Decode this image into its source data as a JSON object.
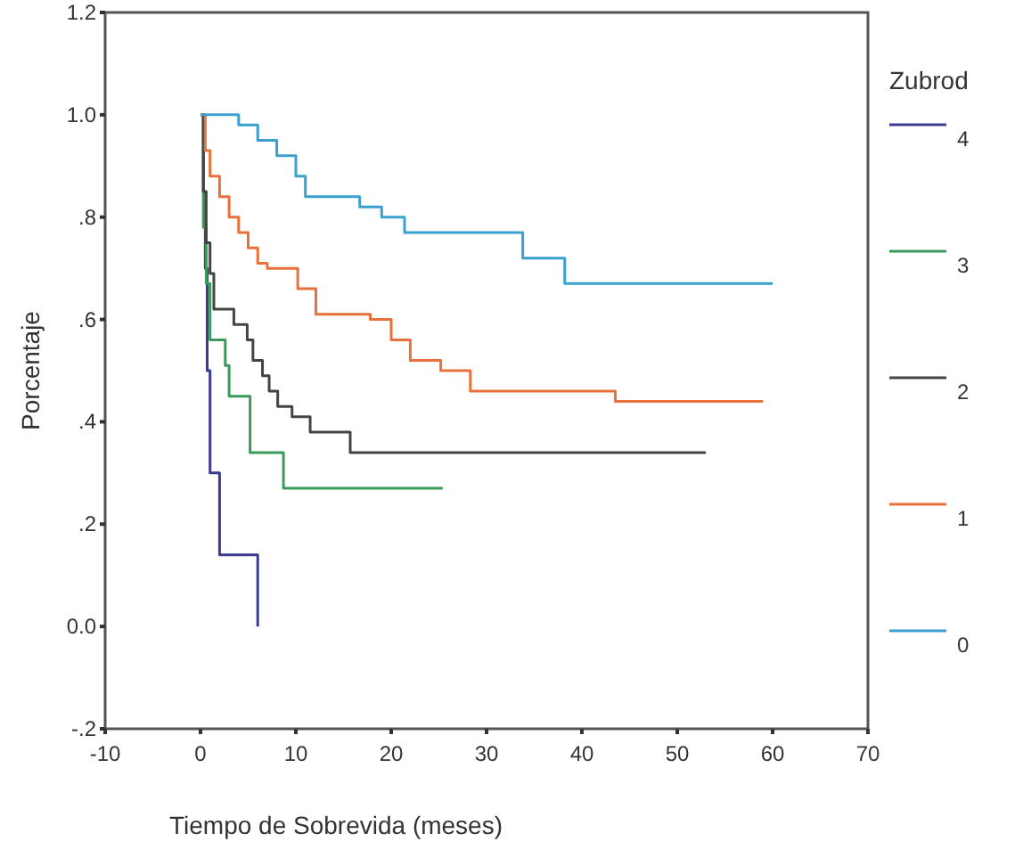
{
  "chart_data": {
    "type": "step",
    "xlabel": "Tiempo de Sobrevida (meses)",
    "ylabel": "Porcentaje",
    "legend_title": "Zubrod",
    "legend": "right",
    "xlim": [
      -10,
      70
    ],
    "xticks": [
      -10,
      0,
      10,
      20,
      30,
      40,
      50,
      60,
      70
    ],
    "ylim": [
      -0.2,
      1.2
    ],
    "yticks": [
      {
        "value": -0.2,
        "label": "-.2"
      },
      {
        "value": 0,
        "label": "0.0"
      },
      {
        "value": 0.2,
        "label": ".2"
      },
      {
        "value": 0.4,
        "label": ".4"
      },
      {
        "value": 0.6,
        "label": ".6"
      },
      {
        "value": 0.8,
        "label": ".8"
      },
      {
        "value": 1,
        "label": "1.0"
      },
      {
        "value": 1.2,
        "label": "1.2"
      }
    ],
    "grid": false,
    "series": [
      {
        "name": "4",
        "color": "#3b3b8f",
        "x": [
          0,
          0.3,
          0.5,
          0.7,
          1,
          2,
          6
        ],
        "values": [
          1,
          0.85,
          0.7,
          0.5,
          0.3,
          0.14,
          0
        ]
      },
      {
        "name": "3",
        "color": "#3a9a5a",
        "x": [
          0,
          0.3,
          0.6,
          1,
          2.6,
          3,
          5.2,
          8.7,
          25.4
        ],
        "values": [
          1,
          0.78,
          0.67,
          0.56,
          0.51,
          0.45,
          0.34,
          0.27,
          0.27
        ]
      },
      {
        "name": "2",
        "color": "#444444",
        "x": [
          0,
          0.3,
          0.6,
          1,
          1.4,
          3.5,
          4.9,
          5.5,
          6.5,
          7.2,
          8.1,
          9.6,
          11.5,
          15.7,
          53
        ],
        "values": [
          1,
          0.85,
          0.75,
          0.69,
          0.62,
          0.59,
          0.56,
          0.52,
          0.49,
          0.46,
          0.43,
          0.41,
          0.38,
          0.34,
          0.34
        ]
      },
      {
        "name": "1",
        "color": "#e8703a",
        "x": [
          0,
          0.5,
          1,
          2,
          3,
          4,
          5,
          6,
          7,
          10.2,
          12.1,
          17.8,
          20,
          22,
          25.2,
          28.3,
          43.5,
          59
        ],
        "values": [
          1,
          0.93,
          0.88,
          0.84,
          0.8,
          0.77,
          0.74,
          0.71,
          0.7,
          0.66,
          0.61,
          0.6,
          0.56,
          0.52,
          0.5,
          0.46,
          0.44,
          0.44
        ]
      },
      {
        "name": "0",
        "color": "#3aa0d0",
        "x": [
          0,
          4,
          6,
          8,
          10,
          11,
          16.7,
          19,
          21.4,
          33.8,
          38.2,
          60
        ],
        "values": [
          1,
          0.98,
          0.95,
          0.92,
          0.88,
          0.84,
          0.82,
          0.8,
          0.77,
          0.72,
          0.67,
          0.67
        ]
      }
    ]
  }
}
